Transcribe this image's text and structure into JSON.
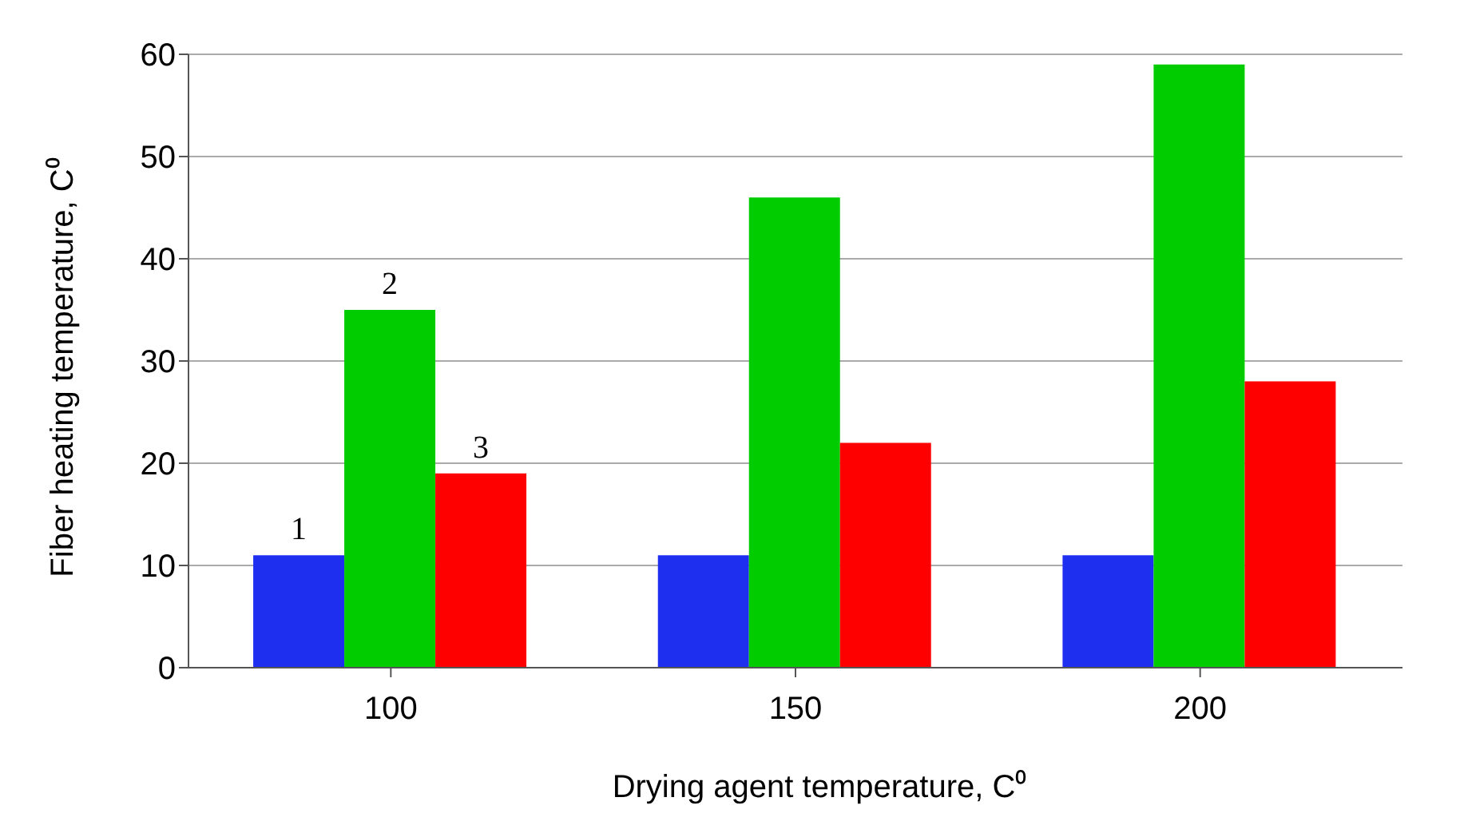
{
  "chart_data": {
    "type": "bar",
    "categories": [
      "100",
      "150",
      "200"
    ],
    "series": [
      {
        "name": "1",
        "color": "#1f2ff0",
        "values": [
          11,
          11,
          11
        ]
      },
      {
        "name": "2",
        "color": "#00cc00",
        "values": [
          35,
          46,
          59
        ]
      },
      {
        "name": "3",
        "color": "#ff0000",
        "values": [
          19,
          22,
          28
        ]
      }
    ],
    "xlabel": "Drying agent temperature, C⁰",
    "ylabel": "Fiber heating temperature, C⁰",
    "ylim": [
      0,
      60
    ],
    "yticks": [
      0,
      10,
      20,
      30,
      40,
      50,
      60
    ],
    "grid": "y"
  }
}
